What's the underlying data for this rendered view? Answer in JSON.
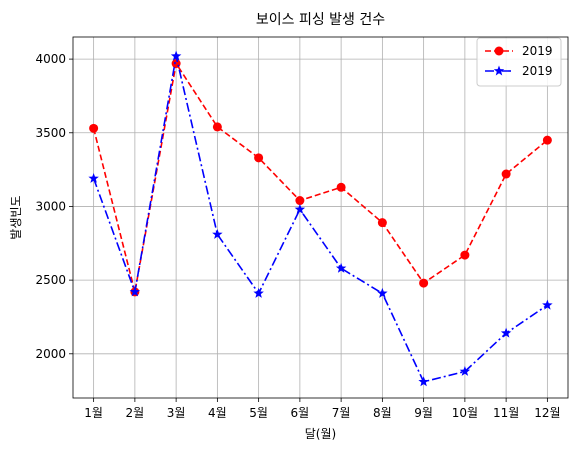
{
  "chart_data": {
    "type": "line",
    "title": "보이스 피싱 발생 건수",
    "xlabel": "달(월)",
    "ylabel": "발생빈도",
    "categories": [
      "1월",
      "2월",
      "3월",
      "4월",
      "5월",
      "6월",
      "7월",
      "8월",
      "9월",
      "10월",
      "11월",
      "12월"
    ],
    "yticks": [
      2000,
      2500,
      3000,
      3500,
      4000
    ],
    "ylim": [
      1700,
      4150
    ],
    "grid": true,
    "legend_position": "top-right",
    "series": [
      {
        "name": "2019",
        "color": "#ff0000",
        "line_style": "dashed",
        "marker": "circle",
        "values": [
          3530,
          2420,
          3970,
          3540,
          3330,
          3040,
          3130,
          2890,
          2480,
          2670,
          3220,
          3450
        ]
      },
      {
        "name": "2019",
        "color": "#0000ff",
        "line_style": "dash-dot",
        "marker": "star",
        "values": [
          3190,
          2420,
          4020,
          2810,
          2410,
          2980,
          2580,
          2410,
          1810,
          1880,
          2140,
          2330
        ]
      }
    ]
  }
}
